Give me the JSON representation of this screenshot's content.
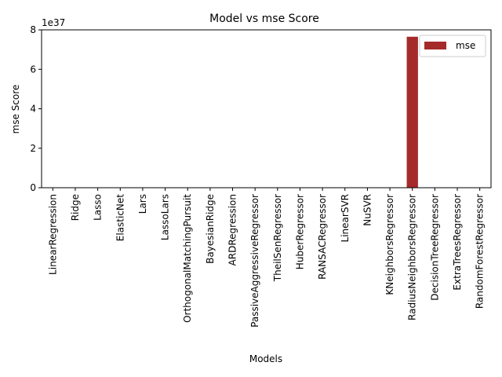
{
  "chart_data": {
    "type": "bar",
    "title": "Model vs mse Score",
    "xlabel": "Models",
    "ylabel": "mse Score",
    "y_multiplier_label": "1e37",
    "ylim": [
      0,
      8
    ],
    "y_ticks": [
      "0",
      "2",
      "4",
      "6",
      "8"
    ],
    "grid": false,
    "legend_position": "top-right",
    "categories": [
      "LinearRegression",
      "Ridge",
      "Lasso",
      "ElasticNet",
      "Lars",
      "LassoLars",
      "OrthogonalMatchingPursuit",
      "BayesianRidge",
      "ARDRegression",
      "PassiveAggressiveRegressor",
      "TheilSenRegressor",
      "HuberRegressor",
      "RANSACRegressor",
      "LinearSVR",
      "NuSVR",
      "KNeighborsRegressor",
      "RadiusNeighborsRegressor",
      "DecisionTreeRegressor",
      "ExtraTreesRegressor",
      "RandomForestRegressor"
    ],
    "series": [
      {
        "name": "mse",
        "color": "#a52a2a",
        "values": [
          0,
          0,
          0,
          0,
          0,
          0,
          0,
          0,
          0,
          0,
          0,
          0,
          0,
          0,
          0,
          0,
          7.65,
          0,
          0,
          0
        ]
      }
    ]
  }
}
